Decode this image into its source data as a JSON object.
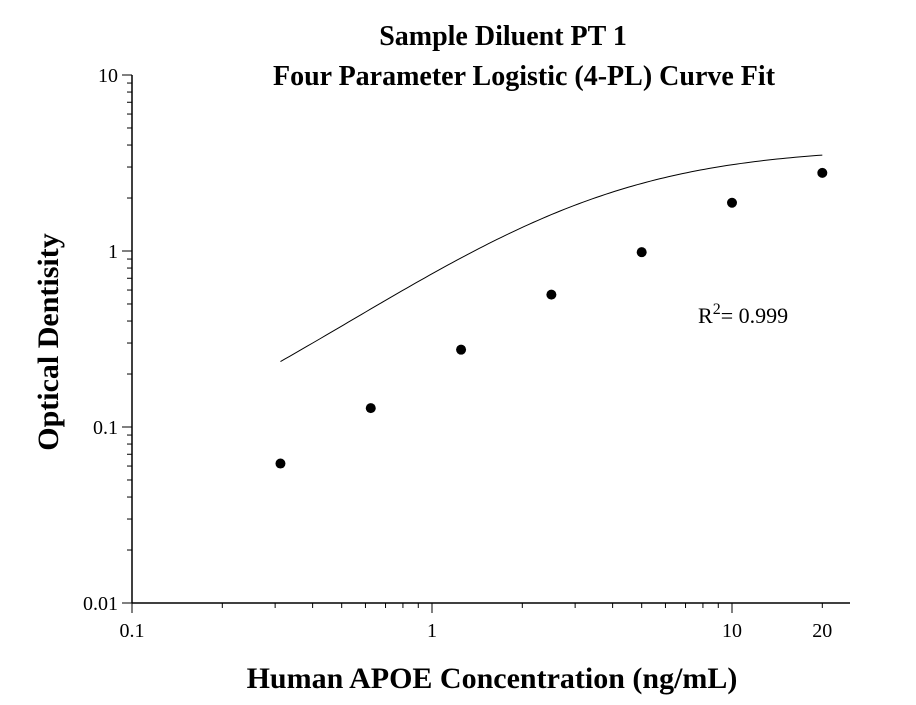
{
  "chart_data": {
    "type": "scatter",
    "title": "Sample Diluent PT 1",
    "subtitle": "Four Parameter Logistic (4-PL) Curve Fit",
    "xlabel": "Human APOE Concentration (ng/mL)",
    "ylabel": "Optical Dentisity",
    "x_scale": "log",
    "y_scale": "log",
    "xlim": [
      0.1,
      25
    ],
    "ylim": [
      0.01,
      10
    ],
    "x_ticks": [
      {
        "value": 0.1,
        "label": "0.1"
      },
      {
        "value": 1,
        "label": "1"
      },
      {
        "value": 10,
        "label": "10"
      },
      {
        "value": 20,
        "label": "20"
      }
    ],
    "y_ticks": [
      {
        "value": 0.01,
        "label": "0.01"
      },
      {
        "value": 0.1,
        "label": "0.1"
      },
      {
        "value": 1,
        "label": "1"
      },
      {
        "value": 10,
        "label": "10"
      }
    ],
    "grid": false,
    "series": [
      {
        "kind": "points",
        "x": [
          0.3125,
          0.625,
          1.25,
          2.5,
          5,
          10,
          20
        ],
        "y": [
          0.062,
          0.128,
          0.275,
          0.565,
          0.985,
          1.88,
          2.78
        ]
      },
      {
        "kind": "fit",
        "model": "4-PL",
        "params": {
          "A": 0.041,
          "B": 1.23,
          "C": 3.4,
          "D": 3.9
        },
        "x_range": [
          0.3125,
          20
        ]
      }
    ],
    "annotation": {
      "prefix": "R",
      "sup": "2",
      "text": "= 0.999"
    }
  }
}
